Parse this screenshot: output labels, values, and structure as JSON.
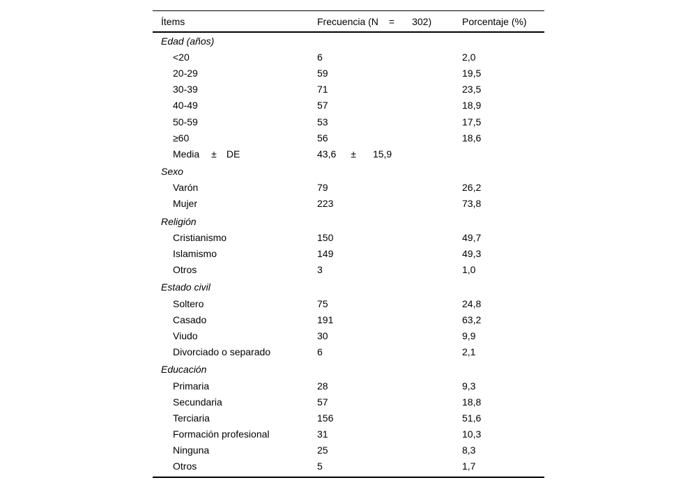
{
  "colors": {
    "background": "#ffffff",
    "text": "#000000",
    "rule": "#000000"
  },
  "table": {
    "header": {
      "items": "Ítems",
      "frequency_parts": [
        "Frecuencia (N",
        "=",
        "302)"
      ],
      "percentage": "Porcentaje (%)"
    },
    "sections": [
      {
        "label": "Edad (años)",
        "rows": [
          {
            "label": "<20",
            "freq": "6",
            "pct": "2,0"
          },
          {
            "label": "20-29",
            "freq": "59",
            "pct": "19,5"
          },
          {
            "label": "30-39",
            "freq": "71",
            "pct": "23,5"
          },
          {
            "label": "40-49",
            "freq": "57",
            "pct": "18,9"
          },
          {
            "label": "50-59",
            "freq": "53",
            "pct": "17,5"
          },
          {
            "label": "≥60",
            "freq": "56",
            "pct": "18,6"
          },
          {
            "label_parts": [
              "Media",
              "±",
              "DE"
            ],
            "freq_parts": [
              "43,6",
              "±",
              "15,9"
            ],
            "pct": ""
          }
        ]
      },
      {
        "label": "Sexo",
        "rows": [
          {
            "label": "Varón",
            "freq": "79",
            "pct": "26,2"
          },
          {
            "label": "Mujer",
            "freq": "223",
            "pct": "73,8"
          }
        ]
      },
      {
        "label": "Religión",
        "rows": [
          {
            "label": "Cristianismo",
            "freq": "150",
            "pct": "49,7"
          },
          {
            "label": "Islamismo",
            "freq": "149",
            "pct": "49,3"
          },
          {
            "label": "Otros",
            "freq": "3",
            "pct": "1,0"
          }
        ]
      },
      {
        "label": "Estado civil",
        "rows": [
          {
            "label": "Soltero",
            "freq": "75",
            "pct": "24,8"
          },
          {
            "label": "Casado",
            "freq": "191",
            "pct": "63,2"
          },
          {
            "label": "Viudo",
            "freq": "30",
            "pct": "9,9"
          },
          {
            "label": "Divorciado o separado",
            "freq": "6",
            "pct": "2,1"
          }
        ]
      },
      {
        "label": "Educación",
        "rows": [
          {
            "label": "Primaria",
            "freq": "28",
            "pct": "9,3"
          },
          {
            "label": "Secundaria",
            "freq": "57",
            "pct": "18,8"
          },
          {
            "label": "Terciaria",
            "freq": "156",
            "pct": "51,6"
          },
          {
            "label": "Formación profesional",
            "freq": "31",
            "pct": "10,3"
          },
          {
            "label": "Ninguna",
            "freq": "25",
            "pct": "8,3"
          },
          {
            "label": "Otros",
            "freq": "5",
            "pct": "1,7"
          }
        ]
      }
    ]
  }
}
